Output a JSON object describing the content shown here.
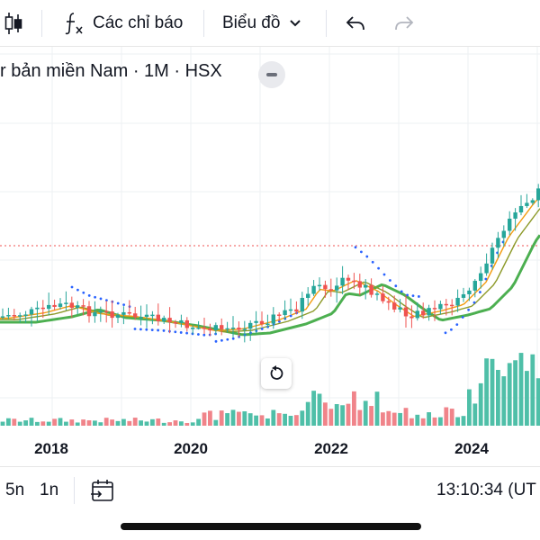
{
  "toolbar": {
    "indicators_label": "Các chỉ báo",
    "chart_type_label": "Biểu đồ"
  },
  "legend": {
    "symbol_text": "r bản miền Nam · 1M · HSX"
  },
  "bottom_bar": {
    "range_5y": "5n",
    "range_1y": "1n",
    "clock": "13:10:34 (UT"
  },
  "colors": {
    "up": "#26a69a",
    "down": "#ef5350",
    "volume_up": "#4fbfa8",
    "volume_down": "#f0848a",
    "sar": "#2962ff",
    "ma_green": "#4caf50",
    "ma_orange": "#f39c12",
    "ma_olive": "#8d9a2a",
    "price_line": "#ef5350"
  },
  "chart_data": {
    "type": "candlestick",
    "interval": "1M",
    "x_ticks": [
      "2018",
      "2020",
      "2022",
      "2024"
    ]
  }
}
